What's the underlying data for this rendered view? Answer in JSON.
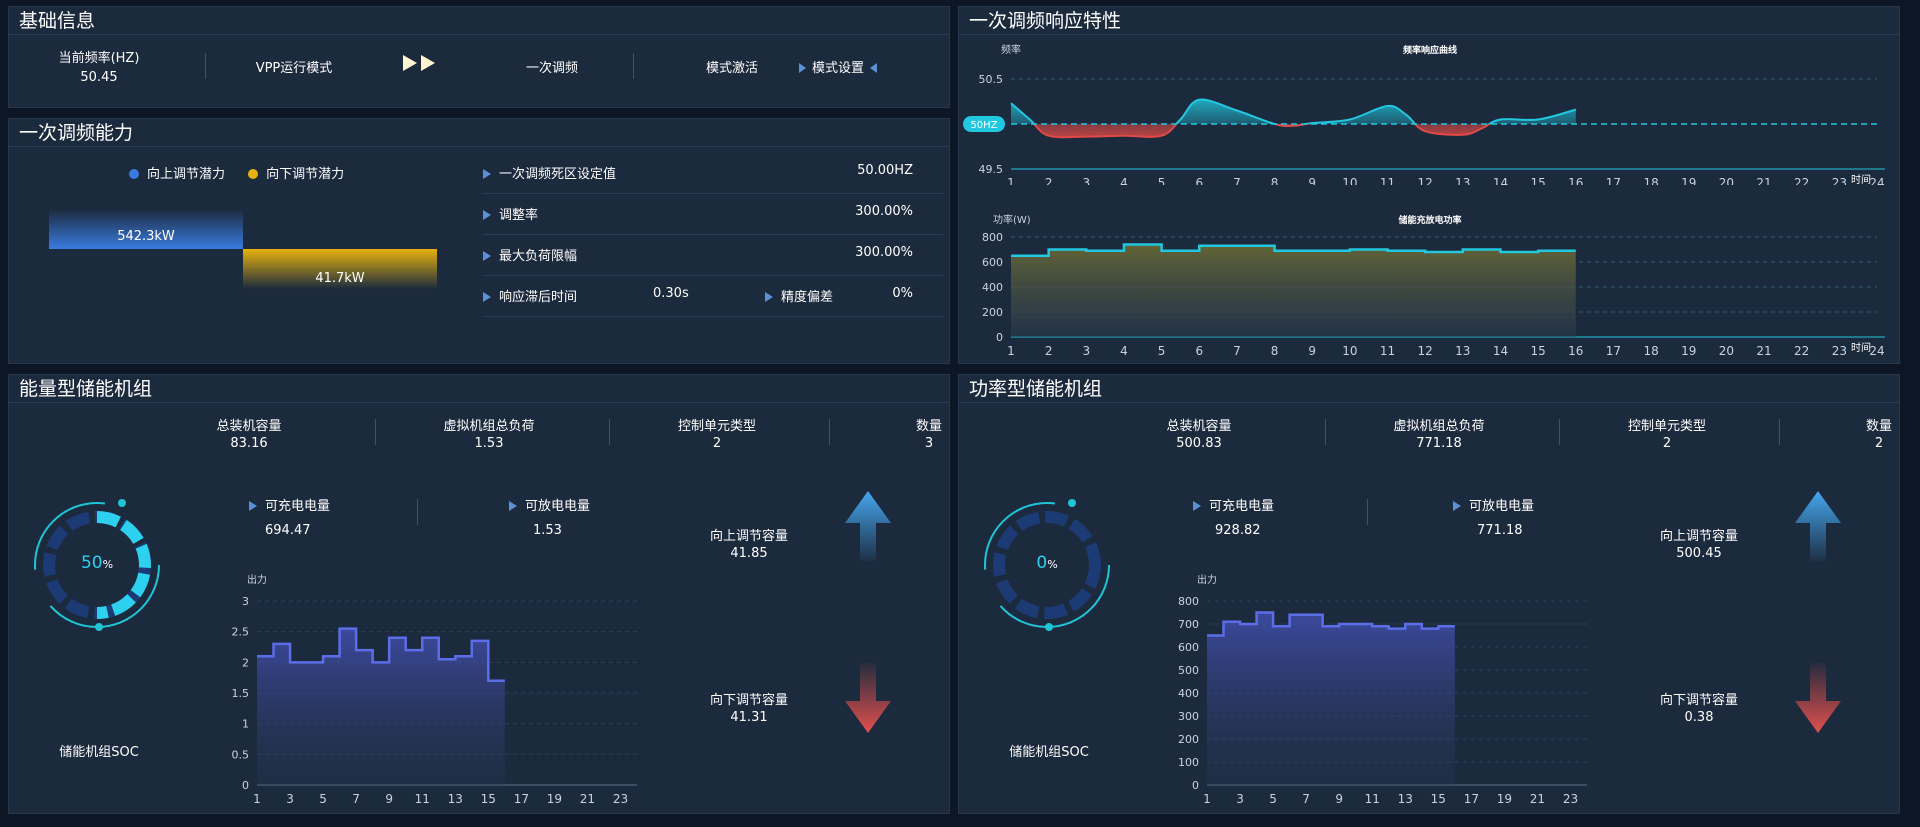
{
  "panels": {
    "basic": "基础信息",
    "capability": "一次调频能力",
    "response": "一次调频响应特性",
    "energy": "能量型储能机组",
    "power": "功率型储能机组"
  },
  "basic": {
    "freq_label": "当前频率(HZ)",
    "freq_value": "50.45",
    "vpp_mode": "VPP运行模式",
    "mode_name": "一次调频",
    "mode_active": "模式激活",
    "mode_setting": "模式设置"
  },
  "capability": {
    "legend_up": "向上调节潜力",
    "legend_down": "向下调节潜力",
    "up_value": "542.3kW",
    "down_value": "41.7kW",
    "up_color": "#3a7be0",
    "down_color": "#e8b20e",
    "rows": [
      {
        "label": "一次调频死区设定值",
        "value": "50.00HZ"
      },
      {
        "label": "调整率",
        "value": "300.00%"
      },
      {
        "label": "最大负荷限幅",
        "value": "300.00%"
      }
    ],
    "lag_label": "响应滞后时间",
    "lag_value": "0.30s",
    "acc_label": "精度偏差",
    "acc_value": "0%"
  },
  "energy": {
    "stats": [
      {
        "label": "总装机容量",
        "value": "83.16"
      },
      {
        "label": "虚拟机组总负荷",
        "value": "1.53"
      },
      {
        "label": "控制单元类型",
        "value": "2"
      },
      {
        "label": "数量",
        "value": "3"
      }
    ],
    "charge_label": "可充电电量",
    "charge_value": "694.47",
    "discharge_label": "可放电电量",
    "discharge_value": "1.53",
    "up_label": "向上调节容量",
    "up_value": "41.85",
    "down_label": "向下调节容量",
    "down_value": "41.31",
    "soc_value": "50",
    "soc_unit": "%",
    "soc_label": "储能机组SOC"
  },
  "power": {
    "stats": [
      {
        "label": "总装机容量",
        "value": "500.83"
      },
      {
        "label": "虚拟机组总负荷",
        "value": "771.18"
      },
      {
        "label": "控制单元类型",
        "value": "2"
      },
      {
        "label": "数量",
        "value": "2"
      }
    ],
    "charge_label": "可充电电量",
    "charge_value": "928.82",
    "discharge_label": "可放电电量",
    "discharge_value": "771.18",
    "up_label": "向上调节容量",
    "up_value": "500.45",
    "down_label": "向下调节容量",
    "down_value": "0.38",
    "soc_value": "0",
    "soc_unit": "%",
    "soc_label": "储能机组SOC"
  },
  "chart_data": [
    {
      "type": "line",
      "title": "频率响应曲线",
      "ylabel": "频率",
      "xlabel": "时间",
      "ylim": [
        49.5,
        50.5
      ],
      "y_ticks": [
        "50.5",
        "49.5"
      ],
      "x_ticks": [
        "1",
        "2",
        "3",
        "4",
        "5",
        "6",
        "7",
        "8",
        "9",
        "10",
        "11",
        "12",
        "13",
        "14",
        "15",
        "16",
        "17",
        "18",
        "19",
        "20",
        "21",
        "22",
        "23",
        "24"
      ],
      "markline": {
        "value": 50,
        "label": "50HZ"
      },
      "x": [
        1,
        1.5,
        2,
        3,
        4,
        5,
        5.5,
        6,
        7,
        8,
        8.5,
        9,
        10,
        11,
        11.5,
        12,
        13,
        13.5,
        14,
        15,
        16
      ],
      "y": [
        50.23,
        50.05,
        49.87,
        49.86,
        49.87,
        49.87,
        50.05,
        50.27,
        50.15,
        50.0,
        49.98,
        50.01,
        50.05,
        50.2,
        50.1,
        49.92,
        49.88,
        49.95,
        50.05,
        50.05,
        50.16
      ],
      "colors": {
        "above": "#21c8e0",
        "below": "#e04a46"
      }
    },
    {
      "type": "area",
      "title": "储能充放电功率",
      "ylabel": "功率(W)",
      "xlabel": "时间",
      "ylim": [
        0,
        800
      ],
      "y_ticks": [
        "0",
        "200",
        "400",
        "600",
        "800"
      ],
      "x_ticks": [
        "1",
        "2",
        "3",
        "4",
        "5",
        "6",
        "7",
        "8",
        "9",
        "10",
        "11",
        "12",
        "13",
        "14",
        "15",
        "16",
        "17",
        "18",
        "19",
        "20",
        "21",
        "22",
        "23",
        "24"
      ],
      "x": [
        1,
        2,
        3,
        4,
        5,
        6,
        7,
        8,
        9,
        10,
        11,
        12,
        13,
        14,
        15,
        16
      ],
      "values": [
        650,
        700,
        690,
        740,
        690,
        730,
        730,
        690,
        690,
        700,
        690,
        680,
        700,
        680,
        690,
        690
      ],
      "color": "#21c8e0"
    },
    {
      "type": "area",
      "ylabel": "出力",
      "ylim": [
        0,
        3
      ],
      "y_ticks": [
        "0",
        "0.5",
        "1",
        "1.5",
        "2",
        "2.5",
        "3"
      ],
      "x_ticks": [
        "1",
        "3",
        "5",
        "7",
        "9",
        "11",
        "13",
        "15",
        "17",
        "19",
        "21",
        "23"
      ],
      "x": [
        1,
        2,
        3,
        4,
        5,
        6,
        7,
        8,
        9,
        10,
        11,
        12,
        13,
        14,
        15,
        16
      ],
      "values": [
        2.1,
        2.3,
        2.0,
        2.0,
        2.1,
        2.55,
        2.2,
        2.0,
        2.4,
        2.2,
        2.4,
        2.05,
        2.1,
        2.35,
        1.7,
        1.7
      ],
      "color": "#5b6ee8"
    },
    {
      "type": "area",
      "ylabel": "出力",
      "ylim": [
        0,
        800
      ],
      "y_ticks": [
        "0",
        "100",
        "200",
        "300",
        "400",
        "500",
        "600",
        "700",
        "800"
      ],
      "x_ticks": [
        "1",
        "3",
        "5",
        "7",
        "9",
        "11",
        "13",
        "15",
        "17",
        "19",
        "21",
        "23"
      ],
      "x": [
        1,
        2,
        3,
        4,
        5,
        6,
        7,
        8,
        9,
        10,
        11,
        12,
        13,
        14,
        15,
        16
      ],
      "values": [
        650,
        710,
        700,
        750,
        690,
        740,
        740,
        690,
        700,
        700,
        690,
        680,
        700,
        680,
        690,
        690
      ],
      "color": "#5b6ee8"
    }
  ]
}
